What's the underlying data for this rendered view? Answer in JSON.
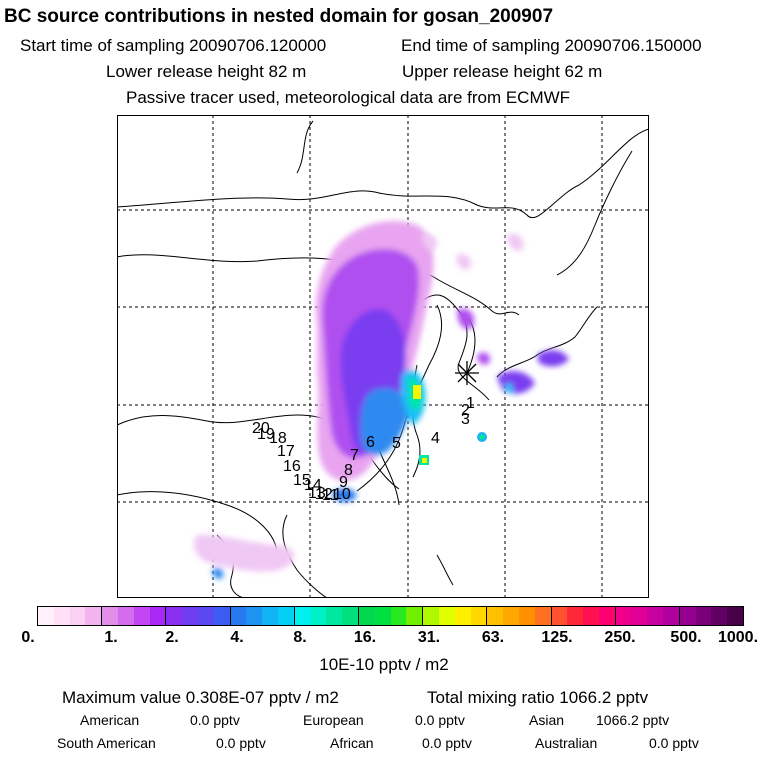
{
  "header": {
    "title": "BC  source contributions in nested domain for gosan_200907",
    "start_label": "Start time of sampling 20090706.120000",
    "end_label": "End time of sampling 20090706.150000",
    "lower_label": "Lower release height   82 m",
    "upper_label": "Upper release height   62 m",
    "note": "Passive tracer used, meteorological data are from ECMWF"
  },
  "map": {
    "point_labels": [
      "1",
      "2",
      "3",
      "4",
      "5",
      "6",
      "7",
      "8",
      "9",
      "10",
      "11",
      "12",
      "13",
      "14",
      "15",
      "16",
      "17",
      "18",
      "19",
      "20"
    ],
    "receptor_icon": "asterisk-star-icon"
  },
  "colorbar": {
    "ticks": [
      "0.",
      "1.",
      "2.",
      "4.",
      "8.",
      "16.",
      "31.",
      "63.",
      "125.",
      "250.",
      "500.",
      "1000."
    ],
    "units": "10E-10 pptv / m2",
    "colors": [
      "#fff0fa",
      "#ffe0f8",
      "#fad0f5",
      "#f2b4f0",
      "#e48ee9",
      "#d56cf0",
      "#c346f5",
      "#aa28f5",
      "#8a2ef0",
      "#6f3cf0",
      "#5a48f0",
      "#3a5cf0",
      "#2878f0",
      "#1e94f2",
      "#12b4f5",
      "#04d0f7",
      "#00f0f0",
      "#00f0c8",
      "#00e8a0",
      "#00e07c",
      "#00d850",
      "#00e040",
      "#28e820",
      "#70f000",
      "#b0f800",
      "#e0ff00",
      "#fff000",
      "#ffd800",
      "#ffc000",
      "#ffa800",
      "#ff9000",
      "#ff7020",
      "#ff5030",
      "#ff2838",
      "#ff1050",
      "#ff0070",
      "#f0008a",
      "#e00098",
      "#c800a0",
      "#b000a0",
      "#960090",
      "#7a007a",
      "#600064",
      "#480048"
    ]
  },
  "stats": {
    "max_label": "Maximum value  0.308E-07 pptv / m2",
    "total_label": "Total mixing ratio     1066.2 pptv",
    "american_label": "American",
    "american_value": "0.0 pptv",
    "european_label": "European",
    "european_value": "0.0 pptv",
    "asian_label": "Asian",
    "asian_value": "1066.2 pptv",
    "south_american_label": "South American",
    "south_american_value": "0.0 pptv",
    "african_label": "African",
    "african_value": "0.0 pptv",
    "australian_label": "Australian",
    "australian_value": "0.0 pptv"
  }
}
